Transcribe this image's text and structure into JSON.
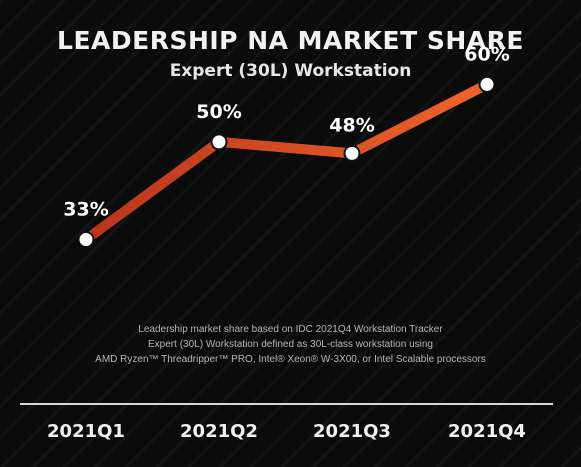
{
  "header": {
    "title": "LEADERSHIP NA MARKET SHARE",
    "subtitle": "Expert (30L) Workstation"
  },
  "footnote": {
    "line1": "Leadership market share based on IDC 2021Q4 Workstation Tracker",
    "line2": "Expert (30L) Workstation defined as 30L-class workstation using",
    "line3": "AMD Ryzen™ Threadripper™ PRO, Intel® Xeon® W-3X00, or Intel Scalable processors"
  },
  "colors": {
    "background": "#0b0b0b",
    "line_start": "#b8351c",
    "line_end": "#f0642a",
    "marker_fill": "#ffffff",
    "marker_stroke": "#111111"
  },
  "chart_data": {
    "type": "line",
    "categories": [
      "2021Q1",
      "2021Q2",
      "2021Q3",
      "2021Q4"
    ],
    "values": [
      33,
      50,
      48,
      60
    ],
    "data_labels": [
      "33%",
      "50%",
      "48%",
      "60%"
    ],
    "ylim": [
      0,
      70
    ],
    "grid": false,
    "legend": "none",
    "xlabel": "",
    "ylabel": ""
  }
}
